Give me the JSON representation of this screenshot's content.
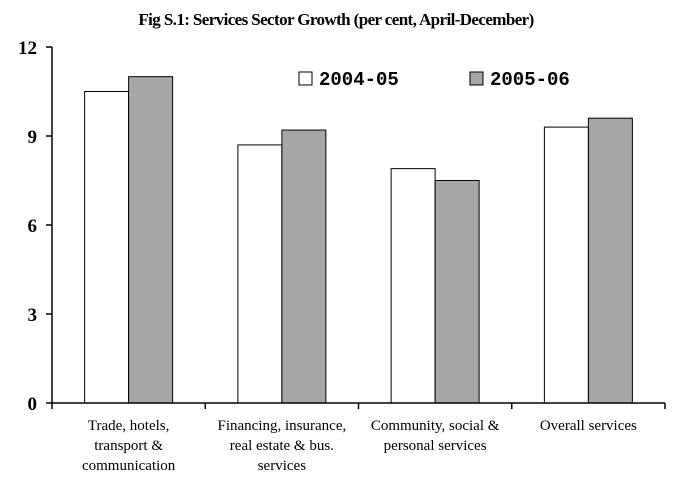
{
  "chart_data": {
    "type": "bar",
    "title": "Fig S.1: Services Sector Growth (per cent, April-December)",
    "xlabel": "",
    "ylabel": "",
    "ylim": [
      0,
      12
    ],
    "yticks": [
      0,
      3,
      6,
      9,
      12
    ],
    "grid": false,
    "legend_position": "top",
    "categories": [
      [
        "Trade, hotels,",
        "transport &",
        "communication"
      ],
      [
        "Financing, insurance,",
        "real estate & bus.",
        "services"
      ],
      [
        "Community, social &",
        "personal services"
      ],
      [
        "Overall services"
      ]
    ],
    "series": [
      {
        "name": "2004-05",
        "color": "#ffffff",
        "values": [
          10.5,
          8.7,
          7.9,
          9.3
        ]
      },
      {
        "name": "2005-06",
        "color": "#a6a6a6",
        "values": [
          11.0,
          9.2,
          7.5,
          9.6
        ]
      }
    ]
  }
}
